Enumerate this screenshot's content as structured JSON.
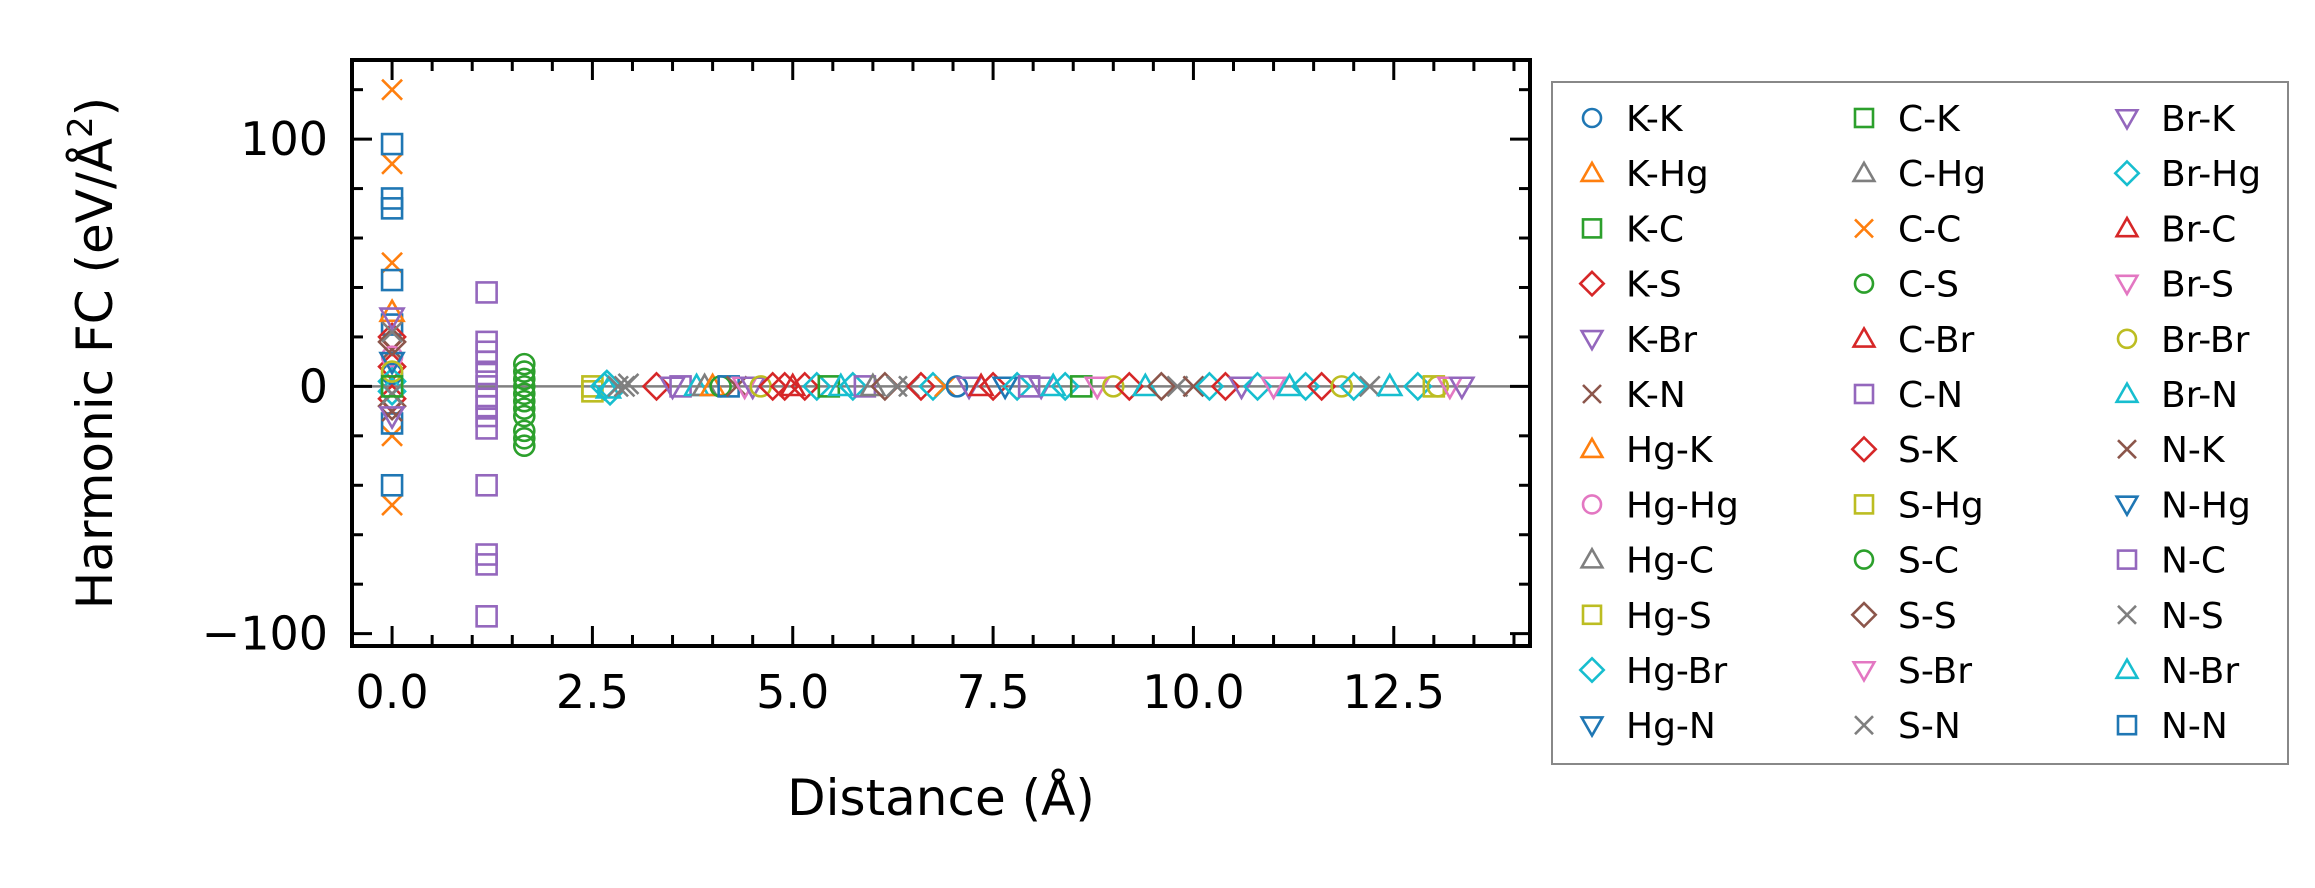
{
  "chart_data": {
    "type": "scatter",
    "xlabel": "Distance (Å)",
    "ylabel_main": "Harmonic FC (eV/Å",
    "ylabel_sup": "2",
    "ylabel_close": ")",
    "xlim": [
      -0.5,
      14.2
    ],
    "ylim": [
      -105,
      132
    ],
    "xticks": [
      0.0,
      2.5,
      5.0,
      7.5,
      10.0,
      12.5
    ],
    "xtick_labels": [
      "0.0",
      "2.5",
      "5.0",
      "7.5",
      "10.0",
      "12.5"
    ],
    "yticks": [
      -100,
      0,
      100
    ],
    "ytick_labels": [
      "−100",
      "0",
      "100"
    ],
    "grid": false,
    "legend_location": "outside right",
    "reference_line_y": 0,
    "series": [
      {
        "name": "K-K",
        "marker": "circle",
        "color": "#1f77b4"
      },
      {
        "name": "K-Hg",
        "marker": "triangle-up",
        "color": "#ff7f0e"
      },
      {
        "name": "K-C",
        "marker": "square",
        "color": "#2ca02c"
      },
      {
        "name": "K-S",
        "marker": "diamond",
        "color": "#d62728"
      },
      {
        "name": "K-Br",
        "marker": "triangle-down",
        "color": "#9467bd"
      },
      {
        "name": "K-N",
        "marker": "x",
        "color": "#8c564b"
      },
      {
        "name": "Hg-K",
        "marker": "triangle-up",
        "color": "#ff7f0e"
      },
      {
        "name": "Hg-Hg",
        "marker": "circle",
        "color": "#e377c2"
      },
      {
        "name": "Hg-C",
        "marker": "triangle-up",
        "color": "#7f7f7f"
      },
      {
        "name": "Hg-S",
        "marker": "square",
        "color": "#bcbd22"
      },
      {
        "name": "Hg-Br",
        "marker": "diamond",
        "color": "#17becf"
      },
      {
        "name": "Hg-N",
        "marker": "triangle-down",
        "color": "#1f77b4"
      },
      {
        "name": "C-K",
        "marker": "square",
        "color": "#2ca02c"
      },
      {
        "name": "C-Hg",
        "marker": "triangle-up",
        "color": "#7f7f7f"
      },
      {
        "name": "C-C",
        "marker": "x",
        "color": "#ff7f0e"
      },
      {
        "name": "C-S",
        "marker": "circle",
        "color": "#2ca02c"
      },
      {
        "name": "C-Br",
        "marker": "triangle-up",
        "color": "#d62728"
      },
      {
        "name": "C-N",
        "marker": "square",
        "color": "#9467bd"
      },
      {
        "name": "S-K",
        "marker": "diamond",
        "color": "#d62728"
      },
      {
        "name": "S-Hg",
        "marker": "square",
        "color": "#bcbd22"
      },
      {
        "name": "S-C",
        "marker": "circle",
        "color": "#2ca02c"
      },
      {
        "name": "S-S",
        "marker": "diamond",
        "color": "#8c564b"
      },
      {
        "name": "S-Br",
        "marker": "triangle-down",
        "color": "#e377c2"
      },
      {
        "name": "S-N",
        "marker": "x",
        "color": "#7f7f7f"
      },
      {
        "name": "Br-K",
        "marker": "triangle-down",
        "color": "#9467bd"
      },
      {
        "name": "Br-Hg",
        "marker": "diamond",
        "color": "#17becf"
      },
      {
        "name": "Br-C",
        "marker": "triangle-up",
        "color": "#d62728"
      },
      {
        "name": "Br-S",
        "marker": "triangle-down",
        "color": "#e377c2"
      },
      {
        "name": "Br-Br",
        "marker": "circle",
        "color": "#bcbd22"
      },
      {
        "name": "Br-N",
        "marker": "triangle-up",
        "color": "#17becf"
      },
      {
        "name": "N-K",
        "marker": "x",
        "color": "#8c564b"
      },
      {
        "name": "N-Hg",
        "marker": "triangle-down",
        "color": "#1f77b4"
      },
      {
        "name": "N-C",
        "marker": "square",
        "color": "#9467bd"
      },
      {
        "name": "N-S",
        "marker": "x",
        "color": "#7f7f7f"
      },
      {
        "name": "N-Br",
        "marker": "triangle-up",
        "color": "#17becf"
      },
      {
        "name": "N-N",
        "marker": "square",
        "color": "#1f77b4"
      }
    ],
    "points": [
      {
        "s": "C-C",
        "x": 0.0,
        "y": 120
      },
      {
        "s": "C-C",
        "x": 0.0,
        "y": 90
      },
      {
        "s": "C-C",
        "x": 0.0,
        "y": 50
      },
      {
        "s": "C-C",
        "x": 0.0,
        "y": -48
      },
      {
        "s": "C-C",
        "x": 0.0,
        "y": -20
      },
      {
        "s": "N-N",
        "x": 0.0,
        "y": 98
      },
      {
        "s": "N-N",
        "x": 0.0,
        "y": 76
      },
      {
        "s": "N-N",
        "x": 0.0,
        "y": 72
      },
      {
        "s": "N-N",
        "x": 0.0,
        "y": 43
      },
      {
        "s": "N-N",
        "x": 0.0,
        "y": 25
      },
      {
        "s": "N-N",
        "x": 0.0,
        "y": -40
      },
      {
        "s": "N-N",
        "x": 0.0,
        "y": -15
      },
      {
        "s": "K-K",
        "x": 0.0,
        "y": 5
      },
      {
        "s": "K-Hg",
        "x": 0.0,
        "y": 30
      },
      {
        "s": "K-S",
        "x": 0.0,
        "y": 20
      },
      {
        "s": "K-S",
        "x": 0.0,
        "y": 8
      },
      {
        "s": "K-S",
        "x": 0.0,
        "y": -5
      },
      {
        "s": "K-N",
        "x": 0.0,
        "y": 15
      },
      {
        "s": "K-N",
        "x": 0.0,
        "y": -10
      },
      {
        "s": "Hg-Hg",
        "x": 0.0,
        "y": 12
      },
      {
        "s": "Hg-Br",
        "x": 0.0,
        "y": 2
      },
      {
        "s": "Hg-Br",
        "x": 0.0,
        "y": -2
      },
      {
        "s": "Hg-N",
        "x": 0.0,
        "y": 10
      },
      {
        "s": "Br-Br",
        "x": 0.0,
        "y": 6
      },
      {
        "s": "S-S",
        "x": 0.0,
        "y": 18
      },
      {
        "s": "S-S",
        "x": 0.0,
        "y": -8
      },
      {
        "s": "N-S",
        "x": 0.0,
        "y": 22
      },
      {
        "s": "S-N",
        "x": 0.0,
        "y": -3
      },
      {
        "s": "Br-K",
        "x": 0.0,
        "y": 28
      },
      {
        "s": "Br-K",
        "x": 0.0,
        "y": -12
      },
      {
        "s": "K-C",
        "x": 0.0,
        "y": 0
      },
      {
        "s": "C-N",
        "x": 1.18,
        "y": 38
      },
      {
        "s": "C-N",
        "x": 1.18,
        "y": 18
      },
      {
        "s": "C-N",
        "x": 1.18,
        "y": 14
      },
      {
        "s": "C-N",
        "x": 1.18,
        "y": 10
      },
      {
        "s": "C-N",
        "x": 1.18,
        "y": 5
      },
      {
        "s": "C-N",
        "x": 1.18,
        "y": 0
      },
      {
        "s": "C-N",
        "x": 1.18,
        "y": -5
      },
      {
        "s": "C-N",
        "x": 1.18,
        "y": -8
      },
      {
        "s": "C-N",
        "x": 1.18,
        "y": -12
      },
      {
        "s": "C-N",
        "x": 1.18,
        "y": -17
      },
      {
        "s": "C-N",
        "x": 1.18,
        "y": -40
      },
      {
        "s": "C-N",
        "x": 1.18,
        "y": -68
      },
      {
        "s": "C-N",
        "x": 1.18,
        "y": -72
      },
      {
        "s": "C-N",
        "x": 1.18,
        "y": -93
      },
      {
        "s": "C-S",
        "x": 1.65,
        "y": 9
      },
      {
        "s": "C-S",
        "x": 1.65,
        "y": 6
      },
      {
        "s": "C-S",
        "x": 1.65,
        "y": 3
      },
      {
        "s": "C-S",
        "x": 1.65,
        "y": 0
      },
      {
        "s": "C-S",
        "x": 1.65,
        "y": -3
      },
      {
        "s": "C-S",
        "x": 1.65,
        "y": -6
      },
      {
        "s": "C-S",
        "x": 1.65,
        "y": -9
      },
      {
        "s": "C-S",
        "x": 1.65,
        "y": -12
      },
      {
        "s": "C-S",
        "x": 1.65,
        "y": -18
      },
      {
        "s": "C-S",
        "x": 1.65,
        "y": -21
      },
      {
        "s": "C-S",
        "x": 1.65,
        "y": -24
      },
      {
        "s": "S-Hg",
        "x": 2.5,
        "y": 0
      },
      {
        "s": "Hg-S",
        "x": 2.5,
        "y": -2
      },
      {
        "s": "Hg-Br",
        "x": 2.65,
        "y": 0
      },
      {
        "s": "Hg-Br",
        "x": 2.72,
        "y": -2
      },
      {
        "s": "Br-Hg",
        "x": 2.68,
        "y": 1
      },
      {
        "s": "N-Br",
        "x": 2.7,
        "y": -1
      },
      {
        "s": "S-N",
        "x": 2.82,
        "y": 0
      },
      {
        "s": "N-S",
        "x": 2.9,
        "y": 0
      },
      {
        "s": "N-S",
        "x": 2.95,
        "y": 1
      },
      {
        "s": "K-S",
        "x": 3.3,
        "y": 0
      },
      {
        "s": "Br-K",
        "x": 3.5,
        "y": 0
      },
      {
        "s": "N-C",
        "x": 3.6,
        "y": 0
      },
      {
        "s": "N-Br",
        "x": 3.8,
        "y": 0
      },
      {
        "s": "C-Hg",
        "x": 3.9,
        "y": 0
      },
      {
        "s": "K-Hg",
        "x": 4.0,
        "y": 0
      },
      {
        "s": "S-C",
        "x": 4.1,
        "y": 0
      },
      {
        "s": "N-N",
        "x": 4.2,
        "y": 0
      },
      {
        "s": "K-N",
        "x": 4.3,
        "y": 0
      },
      {
        "s": "S-Br",
        "x": 4.4,
        "y": 0
      },
      {
        "s": "K-Br",
        "x": 4.5,
        "y": 0
      },
      {
        "s": "Br-Br",
        "x": 4.6,
        "y": 0
      },
      {
        "s": "K-S",
        "x": 4.75,
        "y": 0
      },
      {
        "s": "S-K",
        "x": 4.9,
        "y": 0
      },
      {
        "s": "C-Br",
        "x": 5.0,
        "y": 0
      },
      {
        "s": "S-K",
        "x": 5.15,
        "y": 0
      },
      {
        "s": "Hg-Br",
        "x": 5.3,
        "y": 0
      },
      {
        "s": "K-C",
        "x": 5.45,
        "y": 0
      },
      {
        "s": "Br-N",
        "x": 5.6,
        "y": 0
      },
      {
        "s": "Br-Hg",
        "x": 5.75,
        "y": 0
      },
      {
        "s": "N-C",
        "x": 5.9,
        "y": 0
      },
      {
        "s": "Hg-C",
        "x": 6.0,
        "y": 0
      },
      {
        "s": "S-S",
        "x": 6.15,
        "y": 0
      },
      {
        "s": "N-S",
        "x": 6.3,
        "y": 0
      },
      {
        "s": "S-N",
        "x": 6.45,
        "y": 0
      },
      {
        "s": "K-S",
        "x": 6.6,
        "y": 0
      },
      {
        "s": "Br-Hg",
        "x": 6.75,
        "y": 0
      },
      {
        "s": "C-C",
        "x": 6.9,
        "y": 0
      },
      {
        "s": "K-K",
        "x": 7.05,
        "y": 0
      },
      {
        "s": "Br-K",
        "x": 7.2,
        "y": 0
      },
      {
        "s": "Br-C",
        "x": 7.35,
        "y": 0
      },
      {
        "s": "S-K",
        "x": 7.5,
        "y": 0
      },
      {
        "s": "Hg-N",
        "x": 7.65,
        "y": 0
      },
      {
        "s": "Br-Hg",
        "x": 7.8,
        "y": 0
      },
      {
        "s": "N-C",
        "x": 7.95,
        "y": 0
      },
      {
        "s": "K-Br",
        "x": 8.1,
        "y": 0
      },
      {
        "s": "Br-N",
        "x": 8.25,
        "y": 0
      },
      {
        "s": "Hg-Br",
        "x": 8.4,
        "y": 0
      },
      {
        "s": "C-K",
        "x": 8.6,
        "y": 0
      },
      {
        "s": "S-Br",
        "x": 8.8,
        "y": 0
      },
      {
        "s": "Br-Br",
        "x": 9.0,
        "y": 0
      },
      {
        "s": "K-S",
        "x": 9.2,
        "y": 0
      },
      {
        "s": "N-Br",
        "x": 9.4,
        "y": 0
      },
      {
        "s": "S-S",
        "x": 9.6,
        "y": 0
      },
      {
        "s": "N-S",
        "x": 9.8,
        "y": 0
      },
      {
        "s": "K-N",
        "x": 10.0,
        "y": 0
      },
      {
        "s": "Br-Hg",
        "x": 10.2,
        "y": 0
      },
      {
        "s": "S-K",
        "x": 10.4,
        "y": 0
      },
      {
        "s": "K-Br",
        "x": 10.6,
        "y": 0
      },
      {
        "s": "Hg-Br",
        "x": 10.8,
        "y": 0
      },
      {
        "s": "Br-S",
        "x": 11.0,
        "y": 0
      },
      {
        "s": "N-Br",
        "x": 11.2,
        "y": 0
      },
      {
        "s": "Hg-Br",
        "x": 11.4,
        "y": 0
      },
      {
        "s": "K-S",
        "x": 11.6,
        "y": 0
      },
      {
        "s": "Br-Br",
        "x": 11.85,
        "y": 0
      },
      {
        "s": "Hg-Br",
        "x": 12.0,
        "y": 0
      },
      {
        "s": "S-N",
        "x": 12.2,
        "y": 0
      },
      {
        "s": "Br-N",
        "x": 12.45,
        "y": 0
      },
      {
        "s": "Hg-Br",
        "x": 12.8,
        "y": 0
      },
      {
        "s": "S-Hg",
        "x": 13.0,
        "y": 0
      },
      {
        "s": "Br-Br",
        "x": 13.05,
        "y": 0
      },
      {
        "s": "S-Br",
        "x": 13.2,
        "y": 0
      },
      {
        "s": "Br-K",
        "x": 13.35,
        "y": 0
      }
    ]
  }
}
